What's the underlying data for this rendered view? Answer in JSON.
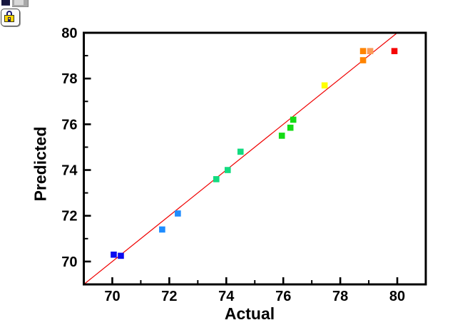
{
  "window": {
    "background_color": "#ffffff",
    "toolbar_fragments": [
      {
        "name": "cropped-toolbar-icon-1"
      },
      {
        "name": "cropped-toolbar-icon-2"
      }
    ],
    "lock_button": {
      "icon": "lock-icon",
      "lock_color": "#ffd400"
    }
  },
  "chart_data": {
    "type": "scatter",
    "title": "",
    "xlabel": "Actual",
    "ylabel": "Predicted",
    "xlim": [
      69,
      81
    ],
    "ylim": [
      69,
      80
    ],
    "xticks": [
      70,
      72,
      74,
      76,
      78,
      80
    ],
    "yticks": [
      70,
      72,
      74,
      76,
      78,
      80
    ],
    "xminor": [
      71,
      73,
      75,
      77,
      79
    ],
    "yminor": [
      71,
      73,
      75,
      77,
      79
    ],
    "grid": false,
    "frame": "box",
    "axis_color": "#000000",
    "marker": "square",
    "marker_size_px": 8.6,
    "points": [
      {
        "x": 70.05,
        "y": 70.3,
        "color": "#0a0af0"
      },
      {
        "x": 70.3,
        "y": 70.25,
        "color": "#0a0af0"
      },
      {
        "x": 71.75,
        "y": 71.4,
        "color": "#1e8cff"
      },
      {
        "x": 72.3,
        "y": 72.1,
        "color": "#1e8cff"
      },
      {
        "x": 73.65,
        "y": 73.6,
        "color": "#12db80"
      },
      {
        "x": 74.05,
        "y": 74.0,
        "color": "#12db80"
      },
      {
        "x": 74.5,
        "y": 74.8,
        "color": "#12db80"
      },
      {
        "x": 75.95,
        "y": 75.5,
        "color": "#14dc14"
      },
      {
        "x": 76.25,
        "y": 75.85,
        "color": "#14dc14"
      },
      {
        "x": 76.35,
        "y": 76.2,
        "color": "#14dc14"
      },
      {
        "x": 77.45,
        "y": 77.7,
        "color": "#ffff00"
      },
      {
        "x": 78.8,
        "y": 78.8,
        "color": "#ff8400"
      },
      {
        "x": 78.8,
        "y": 79.2,
        "color": "#ff8400"
      },
      {
        "x": 79.05,
        "y": 79.2,
        "color": "#fb9b57"
      },
      {
        "x": 79.9,
        "y": 79.2,
        "color": "#f50505"
      }
    ],
    "fit_line": {
      "x1": 69,
      "y1": 69,
      "x2": 80,
      "y2": 80,
      "color": "#f00000"
    }
  }
}
